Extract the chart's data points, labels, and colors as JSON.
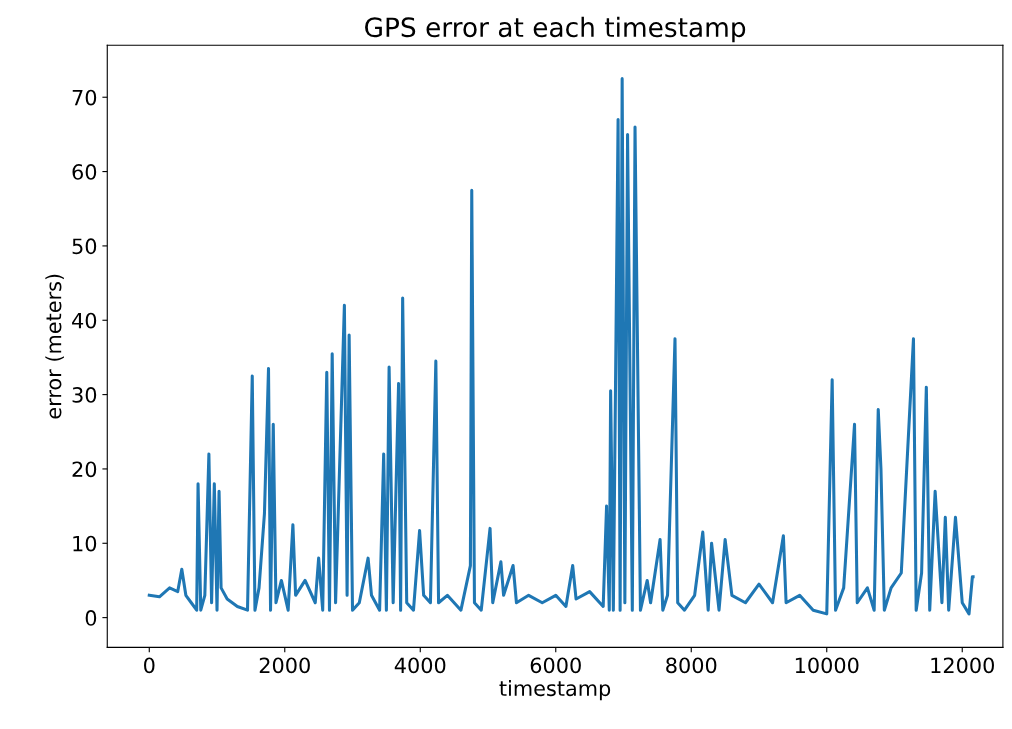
{
  "chart_data": {
    "type": "line",
    "title": "GPS error at each timestamp",
    "xlabel": "timestamp",
    "ylabel": "error (meters)",
    "xlim": [
      -620,
      12600
    ],
    "ylim": [
      -4,
      77
    ],
    "xticks": [
      0,
      2000,
      4000,
      6000,
      8000,
      10000,
      12000
    ],
    "yticks": [
      0,
      10,
      20,
      30,
      40,
      50,
      60,
      70
    ],
    "grid": false,
    "marker": "none",
    "line_style": "solid",
    "series": [
      {
        "color": "#1f77b4",
        "x": [
          0,
          150,
          300,
          420,
          480,
          540,
          620,
          700,
          720,
          760,
          820,
          880,
          920,
          960,
          1000,
          1030,
          1060,
          1150,
          1300,
          1450,
          1520,
          1560,
          1620,
          1700,
          1760,
          1790,
          1830,
          1870,
          1950,
          2050,
          2120,
          2160,
          2300,
          2450,
          2500,
          2560,
          2620,
          2660,
          2700,
          2750,
          2880,
          2920,
          2950,
          3000,
          3100,
          3230,
          3280,
          3400,
          3460,
          3500,
          3540,
          3600,
          3680,
          3710,
          3740,
          3800,
          3900,
          3990,
          4050,
          4150,
          4230,
          4270,
          4400,
          4600,
          4740,
          4760,
          4800,
          4900,
          5030,
          5070,
          5190,
          5230,
          5370,
          5420,
          5600,
          5800,
          6000,
          6150,
          6250,
          6300,
          6500,
          6700,
          6750,
          6790,
          6810,
          6850,
          6920,
          6950,
          6980,
          7020,
          7060,
          7130,
          7170,
          7250,
          7350,
          7400,
          7540,
          7580,
          7650,
          7760,
          7800,
          7900,
          8050,
          8170,
          8250,
          8300,
          8410,
          8500,
          8600,
          8800,
          9000,
          9200,
          9360,
          9400,
          9600,
          9800,
          10000,
          10080,
          10130,
          10250,
          10410,
          10450,
          10600,
          10700,
          10760,
          10800,
          10850,
          10950,
          11100,
          11280,
          11320,
          11400,
          11470,
          11520,
          11600,
          11700,
          11750,
          11800,
          11900,
          12000,
          12100,
          12150,
          12160
        ],
        "values": [
          3,
          2.8,
          4,
          3.5,
          6.5,
          3,
          2,
          1,
          18,
          1,
          3,
          22,
          2,
          18,
          1,
          17,
          4,
          2.5,
          1.5,
          1,
          32.5,
          1,
          4,
          14,
          33.5,
          1,
          26,
          2,
          5,
          1,
          12.5,
          3,
          5,
          2,
          8,
          1,
          33,
          1,
          35.5,
          2,
          42,
          3,
          38,
          1,
          2,
          8,
          3,
          1,
          22,
          1,
          33.7,
          2,
          31.5,
          1,
          43,
          2,
          1,
          11.7,
          3,
          2,
          34.5,
          2,
          3,
          1,
          7,
          57.5,
          2,
          1,
          12,
          2,
          7.5,
          3,
          7,
          2,
          3,
          2,
          3,
          1.5,
          7,
          2.5,
          3.5,
          1.5,
          15,
          1,
          30.5,
          1,
          67,
          1,
          72.5,
          2,
          65,
          1,
          66,
          1,
          5,
          2,
          10.5,
          1,
          3,
          37.5,
          2,
          1,
          3,
          11.5,
          1,
          10,
          1,
          10.5,
          3,
          2,
          4.5,
          2,
          11,
          2,
          3,
          1,
          0.5,
          32,
          1,
          4,
          26,
          2,
          4,
          1,
          28,
          20,
          1,
          4,
          6,
          37.5,
          1,
          6,
          31,
          1,
          17,
          2,
          13.5,
          1,
          13.5,
          2,
          0.5,
          5.5,
          5.5
        ]
      }
    ]
  }
}
